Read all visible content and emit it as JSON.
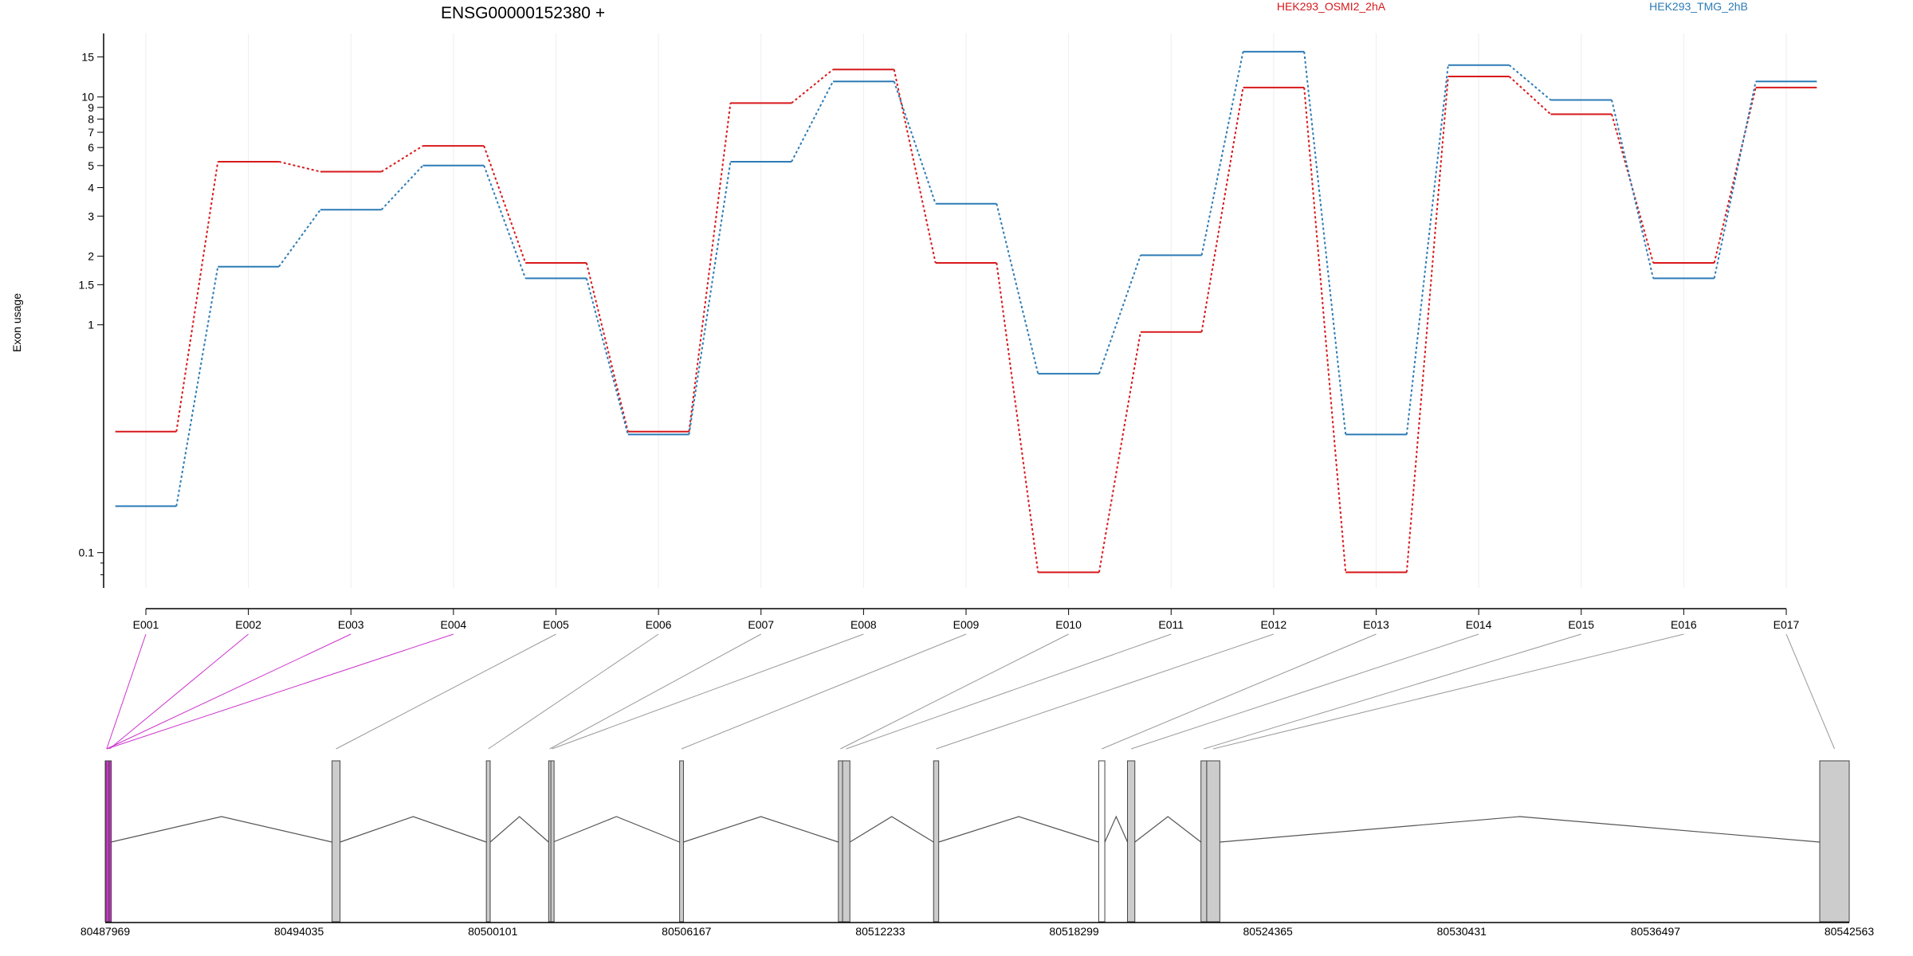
{
  "chart_data": {
    "type": "line",
    "title": "ENSG00000152380 +",
    "xlabel": "",
    "ylabel": "Exon usage",
    "y_scale": "log",
    "y_ticks": [
      0.1,
      1,
      1.5,
      2,
      3,
      4,
      5,
      6,
      7,
      8,
      9,
      10,
      15
    ],
    "y_tick_labels": [
      "0.1",
      "1",
      "1.5",
      "2",
      "3",
      "4",
      "5",
      "6",
      "7",
      "8",
      "9",
      "10",
      "15"
    ],
    "ylim": [
      0.07,
      19
    ],
    "categories": [
      "E001",
      "E002",
      "E003",
      "E004",
      "E005",
      "E006",
      "E007",
      "E008",
      "E009",
      "E010",
      "E011",
      "E012",
      "E013",
      "E014",
      "E015",
      "E016",
      "E017"
    ],
    "legend_position": "top",
    "series": [
      {
        "name": "HEK293_OSMI2_2hA",
        "color": "#d7191c",
        "values": [
          0.34,
          5.2,
          4.7,
          6.1,
          1.87,
          0.34,
          9.4,
          13.2,
          1.87,
          0.082,
          0.93,
          11.0,
          0.082,
          12.3,
          8.4,
          1.87,
          11.0
        ]
      },
      {
        "name": "HEK293_TMG_2hB",
        "color": "#2c7bb6",
        "values": [
          0.16,
          1.8,
          3.2,
          5.0,
          1.6,
          0.33,
          5.2,
          11.7,
          3.4,
          0.61,
          2.02,
          15.8,
          0.33,
          13.8,
          9.7,
          1.6,
          11.7
        ]
      }
    ],
    "gene_model": {
      "coordinate_ticks": [
        80487969,
        80494035,
        80500101,
        80506167,
        80512233,
        80518299,
        80524365,
        80530431,
        80536497,
        80542563
      ],
      "xlim": [
        80487969,
        80542563
      ],
      "exons": [
        {
          "id": "E001",
          "start": 80487969,
          "end": 80488060,
          "highlight": true
        },
        {
          "id": "E002",
          "start": 80488060,
          "end": 80488150,
          "highlight": true
        },
        {
          "id": "E003",
          "start": 80487980,
          "end": 80488050,
          "highlight": true
        },
        {
          "id": "E004",
          "start": 80487990,
          "end": 80488040,
          "highlight": true
        },
        {
          "id": "E005",
          "start": 80495070,
          "end": 80495320
        },
        {
          "id": "E006",
          "start": 80499900,
          "end": 80500020
        },
        {
          "id": "E007",
          "start": 80501850,
          "end": 80501920
        },
        {
          "id": "E008",
          "start": 80501920,
          "end": 80501990
        },
        {
          "id": "E009",
          "start": 80505950,
          "end": 80506070
        },
        {
          "id": "E010",
          "start": 80510920,
          "end": 80511050
        },
        {
          "id": "E011",
          "start": 80511050,
          "end": 80511280
        },
        {
          "id": "E012",
          "start": 80513900,
          "end": 80514060
        },
        {
          "id": "E013",
          "start": 80519070,
          "end": 80519260
        },
        {
          "id": "E014",
          "start": 80519970,
          "end": 80520200
        },
        {
          "id": "E015",
          "start": 80522270,
          "end": 80522450
        },
        {
          "id": "E016",
          "start": 80522450,
          "end": 80522860
        },
        {
          "id": "E017",
          "start": 80541640,
          "end": 80542563
        }
      ],
      "unexpressed_exons": [
        "E013"
      ],
      "highlight_color": "#cc33cc",
      "exon_color": "#cccccc"
    }
  }
}
